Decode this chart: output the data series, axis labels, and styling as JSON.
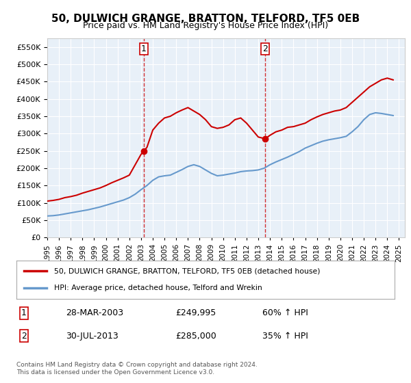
{
  "title": "50, DULWICH GRANGE, BRATTON, TELFORD, TF5 0EB",
  "subtitle": "Price paid vs. HM Land Registry's House Price Index (HPI)",
  "legend_property": "50, DULWICH GRANGE, BRATTON, TELFORD, TF5 0EB (detached house)",
  "legend_hpi": "HPI: Average price, detached house, Telford and Wrekin",
  "footer": "Contains HM Land Registry data © Crown copyright and database right 2024.\nThis data is licensed under the Open Government Licence v3.0.",
  "sale1_label": "1",
  "sale1_date": "28-MAR-2003",
  "sale1_price": "£249,995",
  "sale1_hpi": "60% ↑ HPI",
  "sale1_x": 2003.23,
  "sale2_label": "2",
  "sale2_date": "30-JUL-2013",
  "sale2_price": "£285,000",
  "sale2_hpi": "35% ↑ HPI",
  "sale2_x": 2013.58,
  "property_color": "#cc0000",
  "hpi_color": "#6699cc",
  "dashed_line_color": "#cc0000",
  "background_color": "#ffffff",
  "plot_bg_color": "#e8f0f8",
  "grid_color": "#ffffff",
  "ylim": [
    0,
    575000
  ],
  "xlim": [
    1995,
    2025.5
  ],
  "yticks": [
    0,
    50000,
    100000,
    150000,
    200000,
    250000,
    300000,
    350000,
    400000,
    450000,
    500000,
    550000
  ],
  "xticks": [
    1995,
    1996,
    1997,
    1998,
    1999,
    2000,
    2001,
    2002,
    2003,
    2004,
    2005,
    2006,
    2007,
    2008,
    2009,
    2010,
    2011,
    2012,
    2013,
    2014,
    2015,
    2016,
    2017,
    2018,
    2019,
    2020,
    2021,
    2022,
    2023,
    2024,
    2025
  ],
  "property_x": [
    1995.0,
    1995.5,
    1996.0,
    1996.5,
    1997.0,
    1997.5,
    1998.0,
    1998.5,
    1999.0,
    1999.5,
    2000.0,
    2000.5,
    2001.0,
    2001.5,
    2002.0,
    2002.5,
    2003.0,
    2003.25,
    2003.5,
    2004.0,
    2004.5,
    2005.0,
    2005.5,
    2006.0,
    2006.5,
    2007.0,
    2007.5,
    2008.0,
    2008.5,
    2009.0,
    2009.5,
    2010.0,
    2010.5,
    2011.0,
    2011.5,
    2012.0,
    2012.5,
    2013.0,
    2013.58,
    2014.0,
    2014.5,
    2015.0,
    2015.5,
    2016.0,
    2016.5,
    2017.0,
    2017.5,
    2018.0,
    2018.5,
    2019.0,
    2019.5,
    2020.0,
    2020.5,
    2021.0,
    2021.5,
    2022.0,
    2022.5,
    2023.0,
    2023.5,
    2024.0,
    2024.5
  ],
  "property_y": [
    105000,
    107000,
    110000,
    115000,
    118000,
    122000,
    128000,
    133000,
    138000,
    143000,
    150000,
    158000,
    165000,
    172000,
    180000,
    210000,
    240000,
    249995,
    260000,
    310000,
    330000,
    345000,
    350000,
    360000,
    368000,
    375000,
    365000,
    355000,
    340000,
    320000,
    315000,
    318000,
    325000,
    340000,
    345000,
    330000,
    310000,
    290000,
    285000,
    295000,
    305000,
    310000,
    318000,
    320000,
    325000,
    330000,
    340000,
    348000,
    355000,
    360000,
    365000,
    368000,
    375000,
    390000,
    405000,
    420000,
    435000,
    445000,
    455000,
    460000,
    455000
  ],
  "hpi_x": [
    1995.0,
    1995.5,
    1996.0,
    1996.5,
    1997.0,
    1997.5,
    1998.0,
    1998.5,
    1999.0,
    1999.5,
    2000.0,
    2000.5,
    2001.0,
    2001.5,
    2002.0,
    2002.5,
    2003.0,
    2003.5,
    2004.0,
    2004.5,
    2005.0,
    2005.5,
    2006.0,
    2006.5,
    2007.0,
    2007.5,
    2008.0,
    2008.5,
    2009.0,
    2009.5,
    2010.0,
    2010.5,
    2011.0,
    2011.5,
    2012.0,
    2012.5,
    2013.0,
    2013.5,
    2014.0,
    2014.5,
    2015.0,
    2015.5,
    2016.0,
    2016.5,
    2017.0,
    2017.5,
    2018.0,
    2018.5,
    2019.0,
    2019.5,
    2020.0,
    2020.5,
    2021.0,
    2021.5,
    2022.0,
    2022.5,
    2023.0,
    2023.5,
    2024.0,
    2024.5
  ],
  "hpi_y": [
    62000,
    63000,
    65000,
    68000,
    71000,
    74000,
    77000,
    80000,
    84000,
    88000,
    93000,
    98000,
    103000,
    108000,
    115000,
    125000,
    138000,
    150000,
    165000,
    175000,
    178000,
    180000,
    188000,
    196000,
    205000,
    210000,
    205000,
    195000,
    185000,
    178000,
    180000,
    183000,
    186000,
    190000,
    192000,
    193000,
    195000,
    200000,
    210000,
    218000,
    225000,
    232000,
    240000,
    248000,
    258000,
    265000,
    272000,
    278000,
    282000,
    285000,
    288000,
    292000,
    305000,
    320000,
    340000,
    355000,
    360000,
    358000,
    355000,
    352000
  ],
  "sale1_property_y": 249995,
  "sale2_property_y": 285000
}
